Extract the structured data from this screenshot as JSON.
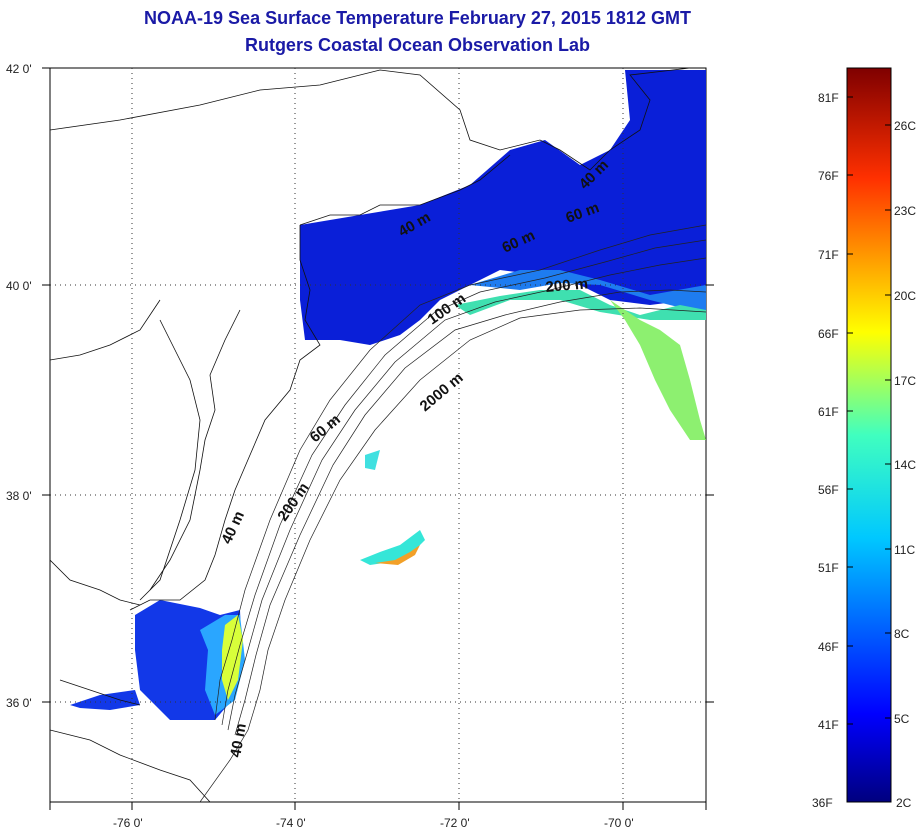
{
  "title": "NOAA-19 Sea Surface Temperature February 27, 2015 1812 GMT",
  "subtitle": "Rutgers Coastal Ocean Observation Lab",
  "map": {
    "lat_ticks": [
      "42 0'",
      "40 0'",
      "38 0'",
      "36 0'"
    ],
    "lon_ticks": [
      "-76 0'",
      "-74 0'",
      "-72 0'",
      "-70 0'"
    ],
    "lon_range": [
      -77,
      -69
    ],
    "lat_range": [
      35,
      42
    ],
    "grid": "dotted",
    "isobath_labels": [
      "40 m",
      "60 m",
      "60 m",
      "100 m",
      "200 m",
      "40 m",
      "60 m",
      "2000 m",
      "100 m",
      "200 m",
      "40 m",
      "40 m"
    ]
  },
  "colorbar": {
    "fahrenheit_labels": [
      "81F",
      "76F",
      "71F",
      "66F",
      "61F",
      "56F",
      "51F",
      "46F",
      "41F",
      "36F"
    ],
    "celsius_labels": [
      "26C",
      "23C",
      "20C",
      "17C",
      "14C",
      "11C",
      "8C",
      "5C",
      "2C"
    ],
    "colormap": "jet",
    "colors": [
      "#00007f",
      "#0000ff",
      "#007fff",
      "#00ffff",
      "#7fff7f",
      "#ffff00",
      "#ff7f00",
      "#ff0000",
      "#7f0000"
    ]
  }
}
